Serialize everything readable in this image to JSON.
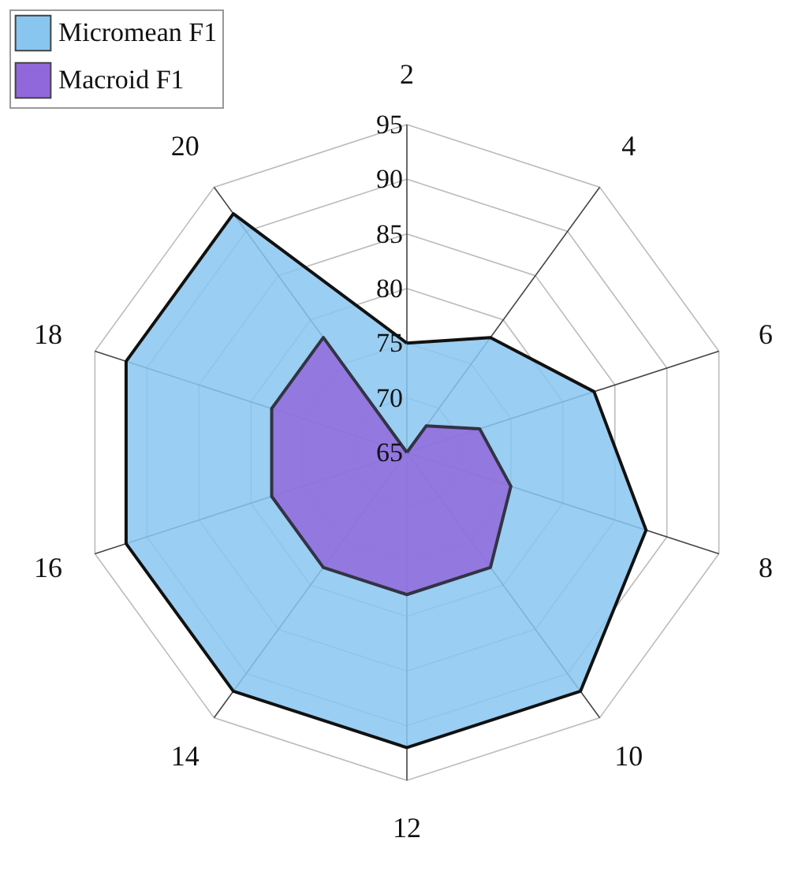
{
  "chart_data": {
    "type": "radar",
    "categories": [
      "2",
      "4",
      "6",
      "8",
      "10",
      "12",
      "14",
      "16",
      "18",
      "20"
    ],
    "series": [
      {
        "name": "Micromean F1",
        "color": "#88c6f0",
        "values": [
          75,
          78,
          83,
          88,
          92,
          92,
          92,
          92,
          92,
          92
        ]
      },
      {
        "name": "Macroid F1",
        "color": "#9168dc",
        "values": [
          65,
          68,
          72,
          75,
          78,
          78,
          78,
          78,
          78,
          78
        ]
      }
    ],
    "ylim": [
      65,
      95
    ],
    "yticks": [
      65,
      70,
      75,
      80,
      85,
      90,
      95
    ],
    "grid": true,
    "legend": "top left"
  }
}
